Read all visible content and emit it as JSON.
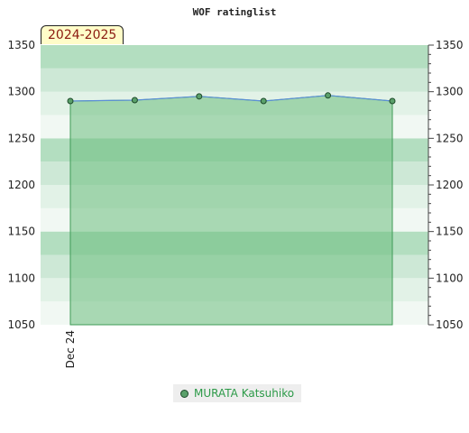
{
  "chart_data": {
    "type": "area",
    "title": "WOF ratinglist",
    "season": "2024-2025",
    "y_range": [
      1050,
      1350
    ],
    "y_ticks": [
      1050,
      1100,
      1150,
      1200,
      1250,
      1300,
      1350
    ],
    "x_tick_labels": [
      "Dec 24"
    ],
    "grid": true,
    "legend_placement": "bottom-center",
    "series": [
      {
        "name": "MURATA Katsuhiko",
        "values": [
          1290,
          1291,
          1295,
          1290,
          1296,
          1290
        ]
      }
    ],
    "colors": {
      "line": "#5b8fd6",
      "area": "#6bbd7e",
      "marker": "#5aa06a",
      "marker_stroke": "#1d4a2a",
      "band_dark": "#b3dec0",
      "band_mid": "#cde8d6",
      "band_light": "#e2f2e7",
      "band_lightest": "#f1f8f3"
    }
  }
}
